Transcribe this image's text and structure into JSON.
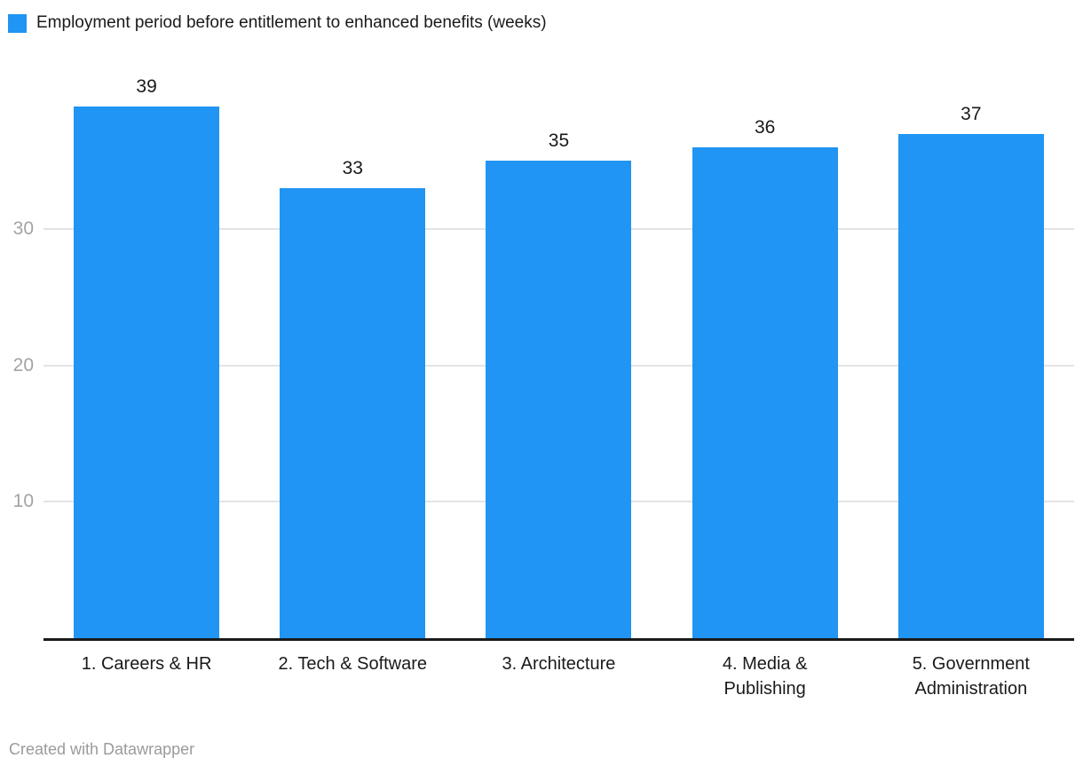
{
  "legend": {
    "label": "Employment period before entitlement to enhanced benefits (weeks)",
    "swatch_color": "#2095f3"
  },
  "chart_data": {
    "type": "bar",
    "title": "Employment period before entitlement to enhanced benefits (weeks)",
    "categories": [
      "1. Careers & HR",
      "2. Tech & Software",
      "3. Architecture",
      "4. Media &\nPublishing",
      "5. Government\nAdministration"
    ],
    "values": [
      39,
      33,
      35,
      36,
      37
    ],
    "xlabel": "",
    "ylabel": "",
    "yticks": [
      10,
      20,
      30
    ],
    "ylim": [
      0,
      42.25
    ],
    "grid": "horizontal",
    "legend_position": "top-left",
    "bar_color": "#2095f3",
    "label_color": "#1a1a1a",
    "tick_color": "#a3a3a3",
    "gridline_color": "#e4e4e4",
    "axis_color": "#1a1a1a"
  },
  "footer": {
    "attribution": "Created with Datawrapper"
  }
}
